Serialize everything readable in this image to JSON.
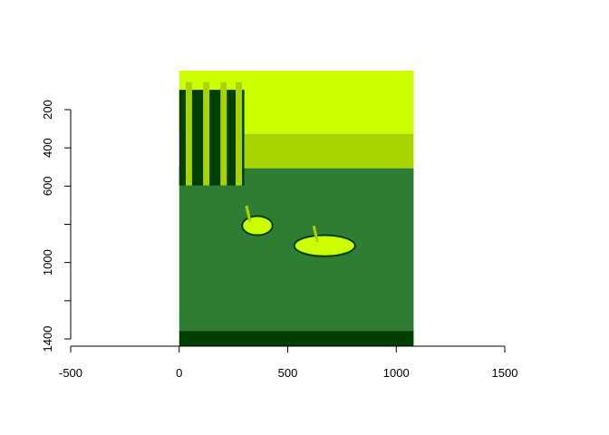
{
  "chart_data": {
    "type": "image",
    "title": "",
    "xlabel": "",
    "ylabel": "",
    "xlim": [
      -500,
      1500
    ],
    "ylim": [
      1400,
      200
    ],
    "x_ticks": [
      -500,
      0,
      500,
      1000,
      1500
    ],
    "y_ticks": [
      200,
      400,
      600,
      800,
      1000,
      1200,
      1400
    ],
    "x_tick_labels": [
      "-500",
      "0",
      "500",
      "1000",
      "1500"
    ],
    "y_tick_labels": [
      "200",
      "400",
      "600",
      "",
      "1000",
      "",
      "1400"
    ],
    "image_extent": {
      "x": [
        0,
        1080
      ],
      "y": [
        0,
        1440
      ]
    },
    "palette": [
      "#003f00",
      "#2e7d32",
      "#a9d400",
      "#ccff00"
    ],
    "regions": [
      {
        "color": "#ccff00",
        "x": [
          0,
          1080
        ],
        "y": [
          0,
          330
        ]
      },
      {
        "color": "#a9d400",
        "x": [
          300,
          1080
        ],
        "y": [
          330,
          510
        ]
      },
      {
        "color": "#2e7d32",
        "x": [
          0,
          1080
        ],
        "y": [
          510,
          1360
        ]
      },
      {
        "color": "#003f00",
        "x": [
          0,
          300
        ],
        "y": [
          100,
          600
        ]
      },
      {
        "color": "#003f00",
        "x": [
          0,
          1080
        ],
        "y": [
          1360,
          1440
        ]
      }
    ],
    "swans": [
      {
        "x": [
          290,
          430
        ],
        "y": [
          760,
          860
        ]
      },
      {
        "x": [
          530,
          810
        ],
        "y": [
          860,
          970
        ]
      }
    ]
  }
}
